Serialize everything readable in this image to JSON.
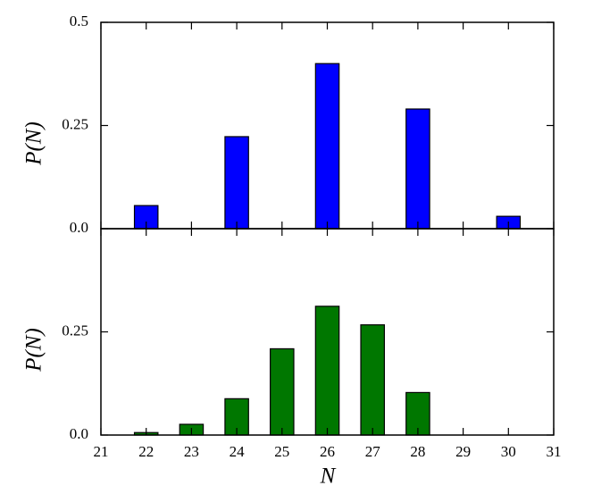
{
  "chart_data": [
    {
      "type": "bar",
      "ylabel": "P(N)",
      "x": [
        22,
        24,
        26,
        28,
        30
      ],
      "values": [
        0.056,
        0.223,
        0.4,
        0.29,
        0.03
      ],
      "color": "#0000ff",
      "xlim": [
        21,
        31
      ],
      "ylim": [
        0,
        0.5
      ],
      "yticks": [
        {
          "value": 0,
          "label": "0.0"
        },
        0.25,
        0.5
      ]
    },
    {
      "type": "bar",
      "ylabel": "P(N)",
      "xlabel": "N",
      "x": [
        22,
        23,
        24,
        25,
        26,
        27,
        28
      ],
      "values": [
        0.006,
        0.026,
        0.088,
        0.209,
        0.312,
        0.267,
        0.103
      ],
      "color": "#007700",
      "xlim": [
        21,
        31
      ],
      "ylim": [
        0,
        0.5
      ],
      "xticks": [
        21,
        22,
        23,
        24,
        25,
        26,
        27,
        28,
        29,
        30,
        31
      ],
      "yticks": [
        {
          "value": 0,
          "label": "0.0"
        },
        0.25
      ]
    }
  ]
}
